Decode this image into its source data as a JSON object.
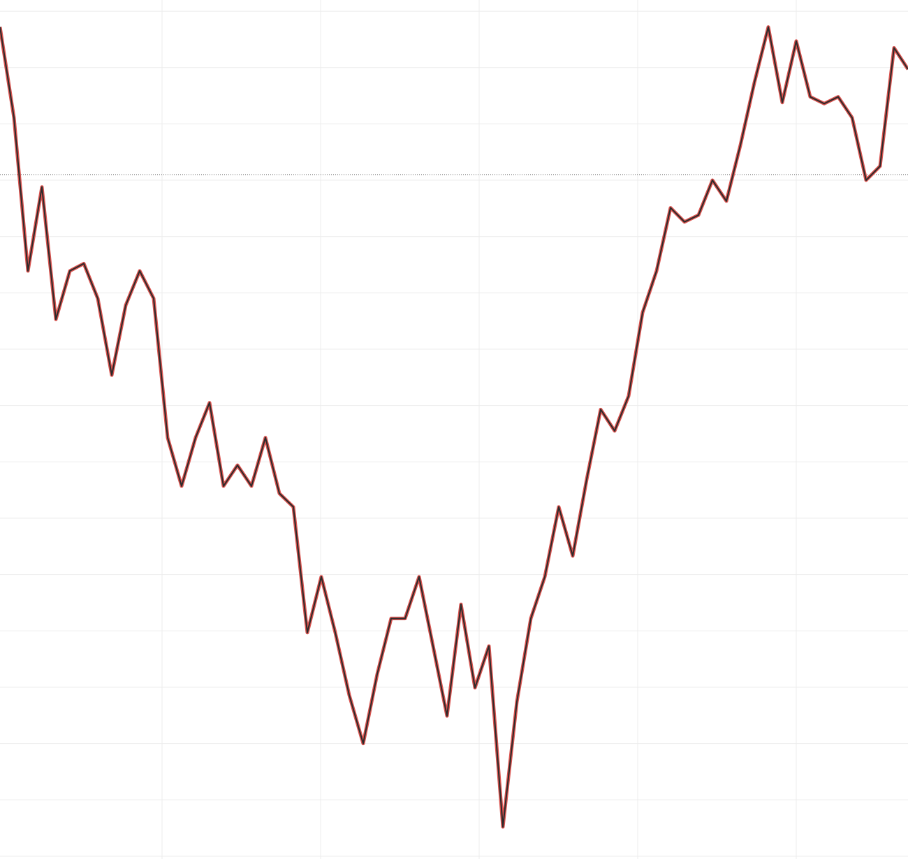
{
  "chart_data": {
    "type": "line",
    "x": [
      0,
      1,
      2,
      3,
      4,
      5,
      6,
      7,
      8,
      9,
      10,
      11,
      12,
      13,
      14,
      15,
      16,
      17,
      18,
      19,
      20,
      21,
      22,
      23,
      24,
      25,
      26,
      27,
      28,
      29,
      30,
      31,
      32,
      33,
      34,
      35,
      36,
      37,
      38,
      39,
      40,
      41,
      42,
      43,
      44,
      45,
      46,
      47,
      48,
      49,
      50,
      51,
      52,
      53,
      54,
      55,
      56,
      57,
      58,
      59,
      60,
      61,
      62,
      63,
      64,
      65
    ],
    "series": [
      {
        "color": "#2b2b2b",
        "accent_color": "#d9534f",
        "values": [
          14.77,
          13.16,
          10.44,
          11.93,
          9.58,
          10.44,
          10.57,
          9.95,
          8.59,
          9.83,
          10.44,
          9.95,
          7.48,
          6.62,
          7.48,
          8.1,
          6.62,
          6.99,
          6.62,
          7.48,
          6.49,
          6.25,
          4.02,
          5.01,
          4.02,
          2.91,
          2.05,
          3.28,
          4.27,
          4.27,
          5.01,
          3.78,
          2.54,
          4.52,
          3.04,
          3.78,
          0.57,
          2.79,
          4.27,
          5.01,
          6.25,
          5.38,
          6.74,
          7.98,
          7.6,
          8.22,
          9.7,
          10.44,
          11.56,
          11.31,
          11.43,
          12.05,
          11.68,
          12.67,
          13.78,
          14.77,
          13.43,
          14.52,
          13.53,
          13.41,
          13.53,
          13.16,
          12.05,
          12.3,
          14.4,
          14.02
        ]
      }
    ],
    "xlim": [
      0,
      65
    ],
    "ylim": [
      0,
      15.15
    ],
    "xticks": [
      11.6,
      22.95,
      34.3,
      45.65,
      57
    ],
    "yticks": [
      0.05,
      1.05,
      2.05,
      3.05,
      4.05,
      5.05,
      6.05,
      7.05,
      8.05,
      9.05,
      10.05,
      11.05,
      12.05,
      13.05,
      14.05,
      15.05
    ],
    "grid": true,
    "reference_line": 12.15
  }
}
